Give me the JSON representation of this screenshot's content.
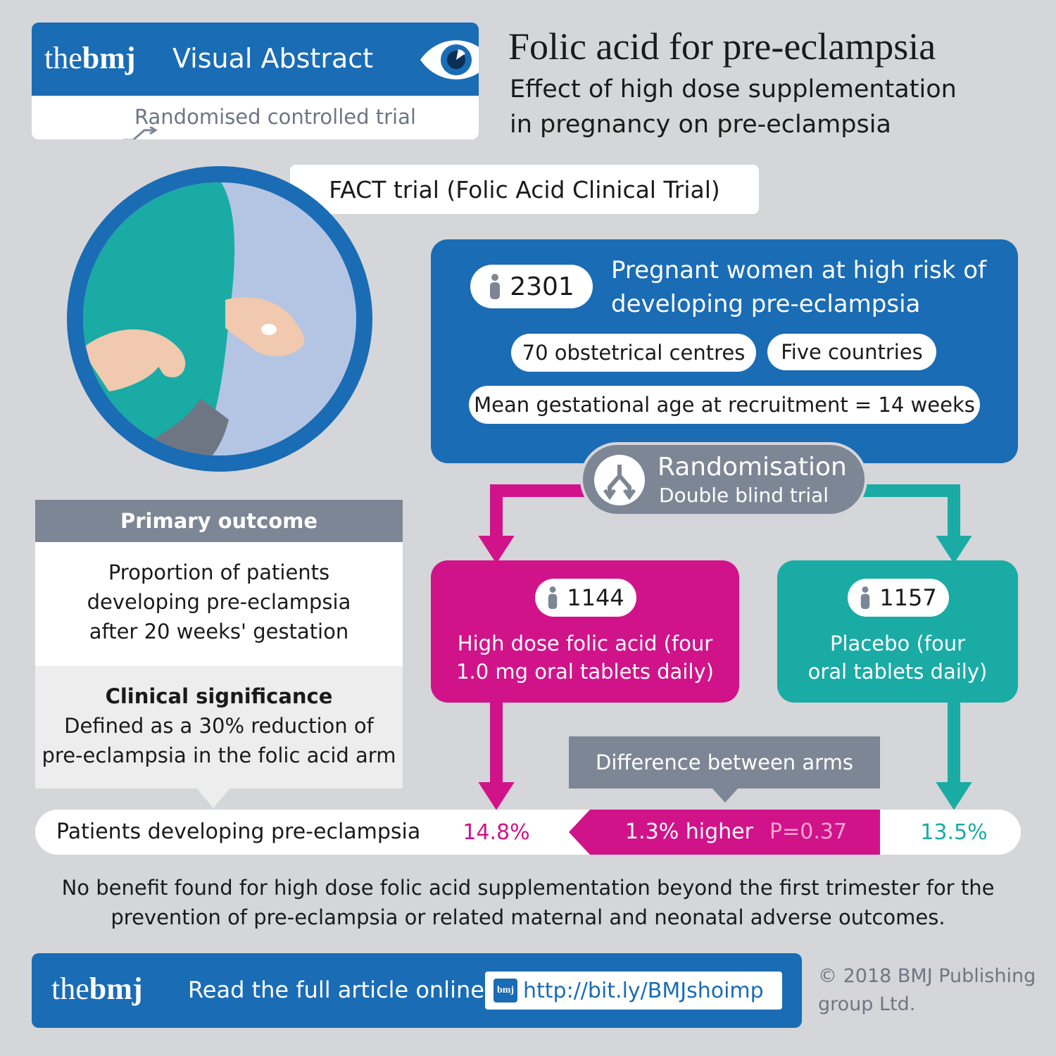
{
  "header": {
    "brand_the": "the",
    "brand_bmj": "bmj",
    "badge_title": "Visual Abstract",
    "study_type": "Randomised controlled trial",
    "title": "Folic acid for pre-eclampsia",
    "subtitle_line1": "Effect of high dose supplementation",
    "subtitle_line2": "in pregnancy on pre-eclampsia"
  },
  "trial_name": "FACT trial (Folic Acid Clinical Trial)",
  "population": {
    "count": "2301",
    "description_line1": "Pregnant women at high risk of",
    "description_line2": "developing pre-eclampsia",
    "centres": "70 obstetrical centres",
    "countries": "Five countries",
    "gestational_age": "Mean gestational age at recruitment = 14 weeks"
  },
  "randomisation": {
    "title": "Randomisation",
    "subtitle": "Double blind trial"
  },
  "arms": {
    "intervention": {
      "count": "1144",
      "label_line1": "High dose folic acid (four",
      "label_line2": "1.0 mg oral tablets daily)"
    },
    "placebo": {
      "count": "1157",
      "label_line1": "Placebo (four",
      "label_line2": "oral tablets daily)"
    }
  },
  "primary_outcome": {
    "header": "Primary outcome",
    "line1": "Proportion of patients",
    "line2": "developing pre-eclampsia",
    "line3": "after 20 weeks' gestation",
    "significance_title": "Clinical significance",
    "significance_line1": "Defined as a 30% reduction of",
    "significance_line2": "pre-eclampsia in the folic acid arm"
  },
  "results": {
    "difference_label": "Difference between arms",
    "row_label": "Patients developing pre-eclampsia",
    "intervention_value": "14.8%",
    "difference_value": "1.3% higher",
    "p_value": "P=0.37",
    "placebo_value": "13.5%"
  },
  "conclusion_line1": "No benefit found for high dose folic acid supplementation beyond the first trimester for the",
  "conclusion_line2": "prevention of pre-eclampsia or related maternal and neonatal adverse outcomes.",
  "footer": {
    "brand_the": "the",
    "brand_bmj": "bmj",
    "read_label": "Read the full article online",
    "link_icon": "bmj",
    "link": "http://bit.ly/BMJshoimp",
    "copyright_line1": "© 2018 BMJ Publishing",
    "copyright_line2": "group Ltd."
  },
  "colors": {
    "blue": "#1a6cb5",
    "dark_blue": "#0f5a9e",
    "magenta": "#d1138a",
    "teal": "#1aaba5",
    "grey": "#7d8695",
    "background": "#d5d6d9"
  }
}
